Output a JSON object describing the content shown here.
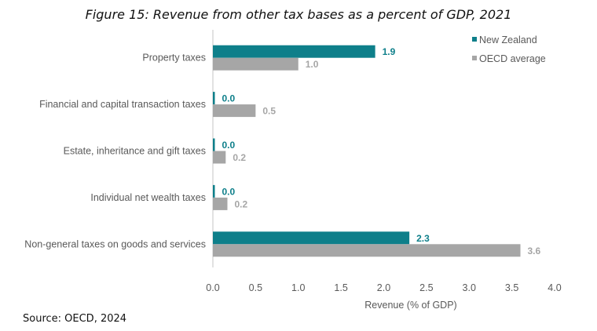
{
  "chart_data": {
    "type": "bar",
    "orientation": "horizontal",
    "title": "Figure 15: Revenue from other tax bases as a percent of GDP, 2021",
    "xlabel": "Revenue (% of GDP)",
    "ylabel": "",
    "xlim": [
      0,
      4.0
    ],
    "xticks": [
      "0.0",
      "0.5",
      "1.0",
      "1.5",
      "2.0",
      "2.5",
      "3.0",
      "3.5",
      "4.0"
    ],
    "grid": false,
    "legend_position": "top-right",
    "categories": [
      "Property taxes",
      "Financial and capital transaction taxes",
      "Estate, inheritance and gift taxes",
      "Individual net wealth taxes",
      "Non-general taxes on goods and services"
    ],
    "series": [
      {
        "name": "New Zealand",
        "color": "#0e7f8a",
        "values": [
          1.9,
          0.02,
          0.0,
          0.0,
          2.3
        ],
        "labels": [
          "1.9",
          "0.0",
          "0.0",
          "0.0",
          "2.3"
        ]
      },
      {
        "name": "OECD average",
        "color": "#a6a6a6",
        "values": [
          1.0,
          0.5,
          0.15,
          0.17,
          3.6
        ],
        "labels": [
          "1.0",
          "0.5",
          "0.2",
          "0.2",
          "3.6"
        ]
      }
    ]
  },
  "source": "Source: OECD, 2024"
}
